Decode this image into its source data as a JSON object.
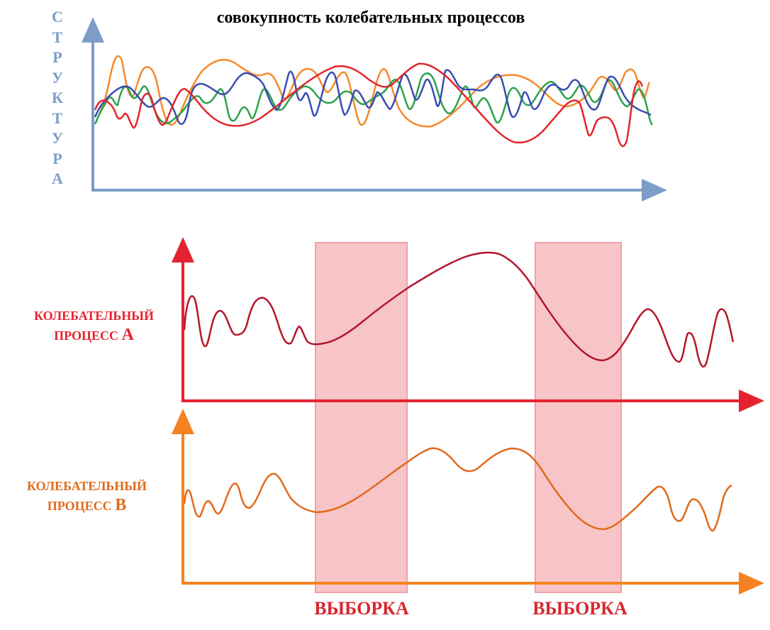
{
  "title": "совокупность колебательных процессов",
  "y_label_letters": [
    "С",
    "Т",
    "Р",
    "У",
    "К",
    "Т",
    "У",
    "Р",
    "А"
  ],
  "process_a": {
    "line1": "КОЛЕБАТЕЛЬНЫЙ",
    "line2": "ПРОЦЕСС",
    "letter": "А"
  },
  "process_b": {
    "line1": "КОЛЕБАТЕЛЬНЫЙ",
    "line2": "ПРОЦЕСС",
    "letter": "В"
  },
  "sample_labels": [
    "ВЫБОРКА",
    "ВЫБОРКА"
  ],
  "colors": {
    "axis_top": "#7d9dc8",
    "axis_a": "#e52330",
    "axis_b": "#f58220",
    "curve_a": "#b3162d",
    "curve_b": "#e06a1c",
    "sample_fill": "#f7c5c8",
    "sample_border": "#f0a0a6",
    "series_red": "#e3252c",
    "series_orange": "#f7892a",
    "series_green": "#2ca24a",
    "series_blue": "#3a4db0"
  }
}
